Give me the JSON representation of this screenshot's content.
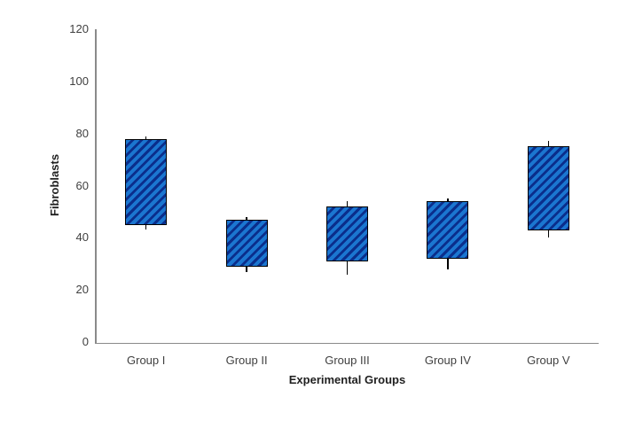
{
  "chart_data": {
    "type": "box",
    "title": "",
    "xlabel": "Experimental Groups",
    "ylabel": "Fibroblasts",
    "ylim": [
      0,
      120
    ],
    "yticks": [
      0,
      20,
      40,
      60,
      80,
      100,
      120
    ],
    "grid": false,
    "legend": false,
    "categories": [
      "Group I",
      "Group II",
      "Group III",
      "Group IV",
      "Group V"
    ],
    "series": [
      {
        "name": "Group I",
        "box_low": 45,
        "box_high": 78,
        "whisker_low": 43,
        "whisker_high": 79
      },
      {
        "name": "Group II",
        "box_low": 29,
        "box_high": 47,
        "whisker_low": 27,
        "whisker_high": 48
      },
      {
        "name": "Group III",
        "box_low": 31,
        "box_high": 52,
        "whisker_low": 26,
        "whisker_high": 54
      },
      {
        "name": "Group IV",
        "box_low": 32,
        "box_high": 54,
        "whisker_low": 28,
        "whisker_high": 55
      },
      {
        "name": "Group V",
        "box_low": 43,
        "box_high": 75,
        "whisker_low": 40,
        "whisker_high": 77
      }
    ],
    "colors": {
      "bar_fill_light": "#1b76d0",
      "bar_fill_dark": "#0a2e8c",
      "bar_border": "#000000",
      "whisker": "#000000",
      "axis_line": "#8a8a8a",
      "tick_label": "#3f3f3f",
      "axis_title": "#1f1f1f",
      "background": "#ffffff"
    }
  }
}
